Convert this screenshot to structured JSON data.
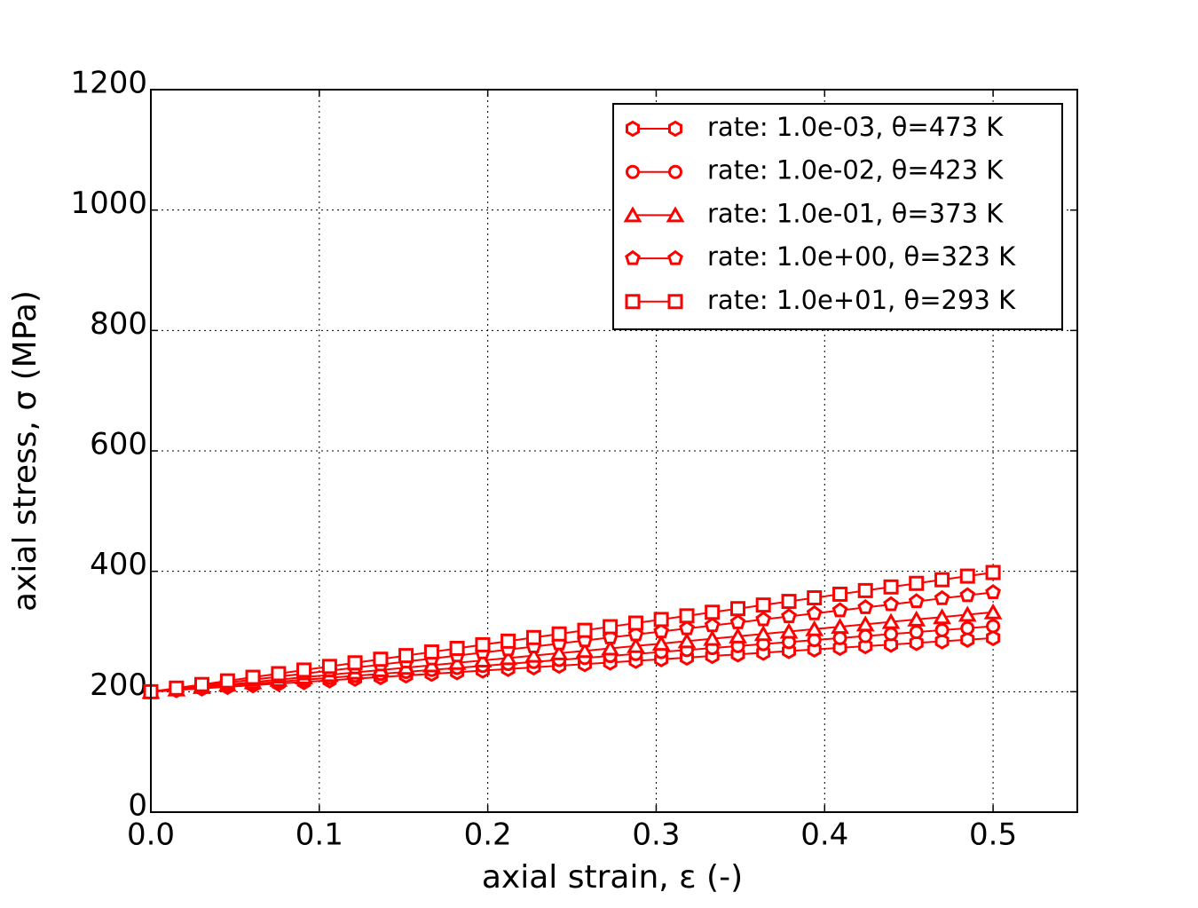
{
  "chart_data": {
    "type": "line",
    "x_label": "axial strain, ε (-)",
    "y_label": "axial stress, σ (MPa)",
    "x": [
      0,
      0.0152,
      0.0303,
      0.0455,
      0.0606,
      0.0758,
      0.0909,
      0.1061,
      0.1212,
      0.1364,
      0.1515,
      0.1667,
      0.1818,
      0.197,
      0.2121,
      0.2273,
      0.2424,
      0.2576,
      0.2727,
      0.2879,
      0.303,
      0.3182,
      0.3333,
      0.3485,
      0.3636,
      0.3788,
      0.3939,
      0.4091,
      0.4242,
      0.4394,
      0.4545,
      0.4697,
      0.4848,
      0.5
    ],
    "series": [
      {
        "name": "rate: 1.0e-03, θ=473 K",
        "color": "#ff0000",
        "marker": "hexagon",
        "values": [
          200,
          202.7,
          205.4,
          208.1,
          210.8,
          213.5,
          216.2,
          218.9,
          221.6,
          224.3,
          227,
          229.7,
          232.4,
          235.1,
          237.8,
          240.5,
          243.2,
          245.9,
          248.6,
          251.3,
          254,
          256.7,
          259.4,
          262.1,
          264.8,
          267.5,
          270.2,
          272.9,
          275.6,
          278.3,
          281,
          283.7,
          286.4,
          289.1
        ]
      },
      {
        "name": "rate: 1.0e-02, θ=423 K",
        "color": "#ff0000",
        "marker": "circle",
        "values": [
          200,
          203.3,
          206.6,
          209.9,
          213.2,
          216.5,
          219.8,
          223.1,
          226.4,
          229.7,
          233,
          236.3,
          239.6,
          242.9,
          246.2,
          249.5,
          252.8,
          256.1,
          259.4,
          262.7,
          266,
          269.3,
          272.6,
          275.9,
          279.2,
          282.5,
          285.8,
          289.1,
          292.4,
          295.7,
          299,
          302.3,
          305.6,
          308.9
        ]
      },
      {
        "name": "rate: 1.0e-01, θ=373 K",
        "color": "#ff0000",
        "marker": "triangle",
        "values": [
          200,
          204,
          208,
          212,
          216,
          220,
          224,
          228,
          232,
          236,
          240,
          244,
          248,
          252,
          256,
          260,
          264,
          268,
          272,
          276,
          280,
          284,
          288,
          292,
          296,
          300,
          304,
          308,
          312,
          316,
          320,
          324,
          328,
          332
        ]
      },
      {
        "name": "rate: 1.0e+00, θ=323 K",
        "color": "#ff0000",
        "marker": "pentagon",
        "values": [
          200,
          205,
          210,
          215,
          220,
          225,
          230,
          235,
          240,
          245,
          250,
          255,
          260,
          265,
          270,
          275,
          280,
          285,
          290,
          295,
          300,
          305,
          310,
          315,
          320,
          325,
          330,
          335,
          340,
          345,
          350,
          355,
          360,
          365
        ]
      },
      {
        "name": "rate: 1.0e+01, θ=293 K",
        "color": "#ff0000",
        "marker": "square",
        "values": [
          200,
          206,
          212,
          218,
          224,
          230,
          236,
          242,
          248,
          254,
          260,
          266,
          272,
          278,
          284,
          290,
          296,
          302,
          308,
          314,
          320,
          326,
          332,
          338,
          344,
          350,
          356,
          362,
          368,
          374,
          380,
          386,
          392,
          398
        ]
      }
    ],
    "xlim": [
      0,
      0.55
    ],
    "xticks": [
      {
        "value": 0,
        "label": "0.0"
      },
      0.1,
      0.2,
      0.3,
      0.4,
      0.5
    ],
    "ylim": [
      0,
      1200
    ],
    "yticks": [
      0,
      200,
      400,
      600,
      800,
      1000,
      1200
    ],
    "grid": true,
    "legend": "upper right"
  }
}
